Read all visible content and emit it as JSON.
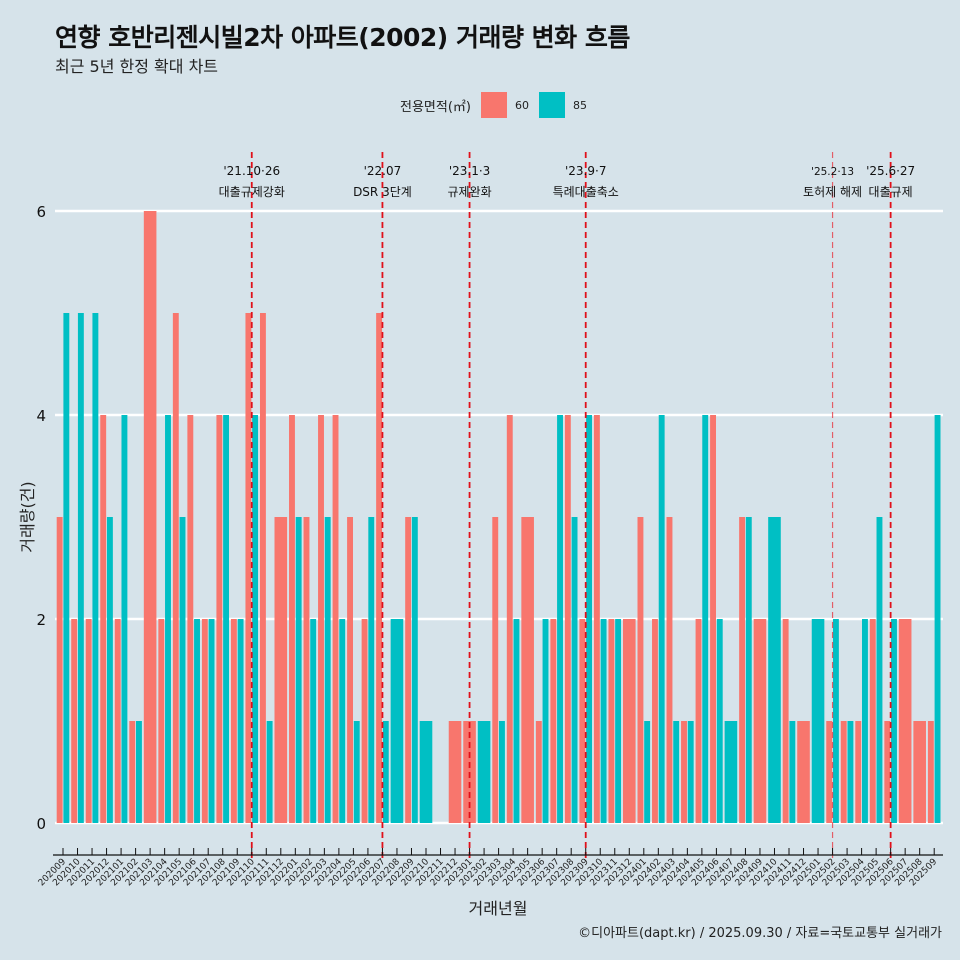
{
  "title": "연향 호반리젠시빌2차 아파트(2002) 거래량 변화 흐름",
  "subtitle": "최근 5년 한정 확대 차트",
  "legend": {
    "title": "전용면적(㎡)",
    "items": [
      {
        "label": "60",
        "color": "#f8766d"
      },
      {
        "label": "85",
        "color": "#00bfc4"
      }
    ]
  },
  "footer": "©디아파트(dapt.kr) / 2025.09.30 / 자료=국토교통부 실거래가",
  "chart_data": {
    "type": "bar",
    "title": "연향 호반리젠시빌2차 아파트(2002) 거래량 변화 흐름",
    "xlabel": "거래년월",
    "ylabel": "거래량(건)",
    "ylim": [
      0,
      6
    ],
    "yticks": [
      0,
      2,
      4,
      6
    ],
    "grid": true,
    "legend_position": "top",
    "categories": [
      "202009",
      "202010",
      "202011",
      "202012",
      "202101",
      "202102",
      "202103",
      "202104",
      "202105",
      "202106",
      "202107",
      "202108",
      "202109",
      "202110",
      "202111",
      "202112",
      "202201",
      "202202",
      "202203",
      "202204",
      "202205",
      "202206",
      "202207",
      "202208",
      "202209",
      "202210",
      "202211",
      "202212",
      "202301",
      "202302",
      "202303",
      "202304",
      "202305",
      "202306",
      "202307",
      "202308",
      "202309",
      "202310",
      "202311",
      "202312",
      "202401",
      "202402",
      "202403",
      "202404",
      "202405",
      "202406",
      "202407",
      "202408",
      "202409",
      "202410",
      "202411",
      "202412",
      "202501",
      "202502",
      "202503",
      "202504",
      "202505",
      "202506",
      "202507",
      "202508",
      "202509"
    ],
    "series": [
      {
        "name": "60",
        "color": "#f8766d",
        "values": [
          3,
          2,
          2,
          4,
          2,
          1,
          6,
          2,
          5,
          4,
          2,
          4,
          2,
          5,
          5,
          3,
          4,
          3,
          4,
          4,
          3,
          2,
          5,
          null,
          3,
          null,
          null,
          1,
          1,
          null,
          3,
          4,
          3,
          1,
          2,
          4,
          2,
          4,
          2,
          2,
          3,
          2,
          3,
          1,
          2,
          4,
          null,
          3,
          2,
          null,
          2,
          1,
          null,
          1,
          1,
          1,
          2,
          1,
          2,
          1,
          1
        ]
      },
      {
        "name": "85",
        "color": "#00bfc4",
        "values": [
          5,
          5,
          5,
          3,
          4,
          1,
          null,
          4,
          3,
          2,
          2,
          4,
          2,
          4,
          1,
          null,
          3,
          2,
          3,
          2,
          1,
          3,
          1,
          2,
          3,
          1,
          null,
          null,
          null,
          1,
          1,
          2,
          null,
          2,
          4,
          3,
          4,
          2,
          2,
          null,
          1,
          4,
          1,
          1,
          4,
          2,
          1,
          3,
          null,
          3,
          1,
          null,
          2,
          2,
          1,
          2,
          3,
          2,
          null,
          null,
          4
        ]
      }
    ],
    "events": [
      {
        "date": "'21.10·26",
        "label": "대출규제강화",
        "month": "202110",
        "style": "bold"
      },
      {
        "date": "'22.07",
        "label": "DSR 3단계",
        "month": "202207",
        "style": "bold"
      },
      {
        "date": "'23.1·3",
        "label": "규제완화",
        "month": "202301",
        "style": "bold"
      },
      {
        "date": "'23.9·7",
        "label": "특례대출축소",
        "month": "202309",
        "style": "bold"
      },
      {
        "date": "'25.2·13",
        "label": "토허제 해제",
        "month": "202502",
        "style": "light"
      },
      {
        "date": "'25.6·27",
        "label": "대출규제",
        "month": "202506",
        "style": "bold"
      }
    ]
  }
}
